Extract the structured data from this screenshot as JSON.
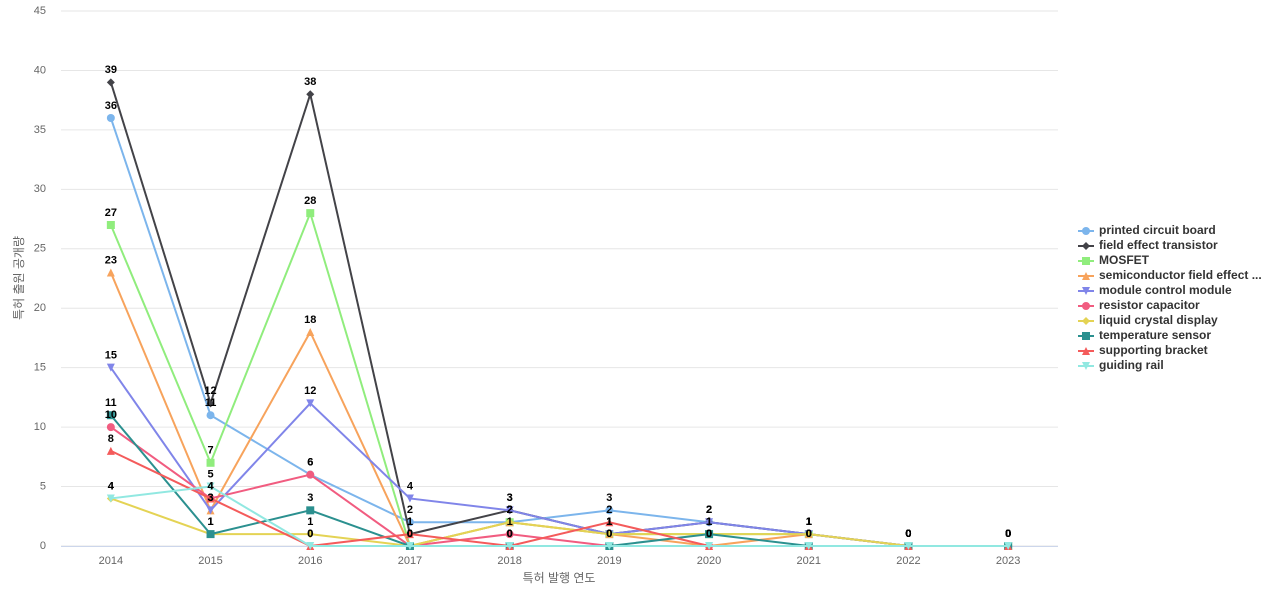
{
  "chart_data": {
    "type": "line",
    "x_label": "특허 발행 연도",
    "y_label": "특허 출원 공개량",
    "categories": [
      "2014",
      "2015",
      "2016",
      "2017",
      "2018",
      "2019",
      "2020",
      "2021",
      "2022",
      "2023"
    ],
    "ylim": [
      0,
      45
    ],
    "yticks": [
      0,
      5,
      10,
      15,
      20,
      25,
      30,
      35,
      40,
      45
    ],
    "grid": true,
    "legend": "right",
    "series": [
      {
        "name": "printed circuit board",
        "color": "#7cb5ec",
        "marker": "circle",
        "values": [
          36,
          11,
          6,
          2,
          2,
          3,
          2,
          1,
          0,
          0
        ]
      },
      {
        "name": "field effect transistor",
        "color": "#434348",
        "marker": "diamond",
        "values": [
          39,
          12,
          38,
          1,
          3,
          1,
          2,
          1,
          0,
          0
        ]
      },
      {
        "name": "MOSFET",
        "color": "#90ed7d",
        "marker": "square",
        "values": [
          27,
          7,
          28,
          0,
          2,
          1,
          1,
          1,
          0,
          0
        ]
      },
      {
        "name": "semiconductor field effect ...",
        "color": "#f7a35c",
        "marker": "triangle",
        "values": [
          23,
          3,
          18,
          0,
          2,
          1,
          0,
          1,
          0,
          0
        ]
      },
      {
        "name": "module control module",
        "color": "#8085e9",
        "marker": "triangle-down",
        "values": [
          15,
          3,
          12,
          4,
          3,
          1,
          2,
          1,
          0,
          0
        ]
      },
      {
        "name": "resistor capacitor",
        "color": "#f15c80",
        "marker": "circle",
        "values": [
          10,
          4,
          6,
          0,
          1,
          0,
          0,
          0,
          0,
          0
        ]
      },
      {
        "name": "liquid crystal display",
        "color": "#e4d354",
        "marker": "diamond",
        "values": [
          4,
          1,
          1,
          0,
          2,
          1,
          1,
          1,
          0,
          0
        ]
      },
      {
        "name": "temperature sensor",
        "color": "#2b908f",
        "marker": "square",
        "values": [
          11,
          1,
          3,
          0,
          0,
          0,
          1,
          0,
          0,
          0
        ]
      },
      {
        "name": "supporting bracket",
        "color": "#f45b5b",
        "marker": "triangle",
        "values": [
          8,
          4,
          0,
          1,
          0,
          2,
          0,
          0,
          0,
          0
        ]
      },
      {
        "name": "guiding rail",
        "color": "#91e8e1",
        "marker": "triangle-down",
        "values": [
          4,
          5,
          0,
          0,
          0,
          0,
          0,
          0,
          0,
          0
        ]
      }
    ]
  }
}
